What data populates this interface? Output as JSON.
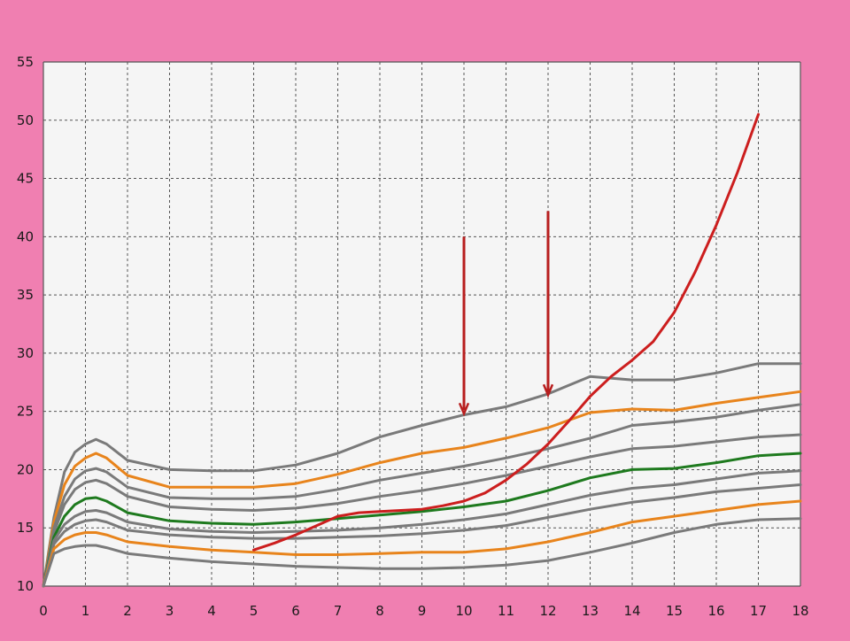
{
  "colors": {
    "background": "#f07fb1",
    "plot_area": "#f5f5f5",
    "grid": "#555555",
    "percentile_gray": "#7a7a7a",
    "percentile_orange": "#e8841c",
    "median_green": "#1e7a1e",
    "patient_red": "#cc1e1e",
    "arrow": "#b81e1e"
  },
  "chart_data": {
    "type": "line",
    "title": "",
    "xlabel": "",
    "ylabel": "",
    "xlim": [
      0,
      18
    ],
    "ylim": [
      10,
      55
    ],
    "x_ticks": [
      "0",
      "1",
      "2",
      "3",
      "4",
      "5",
      "6",
      "7",
      "8",
      "9",
      "10",
      "11",
      "12",
      "13",
      "14",
      "15",
      "16",
      "17",
      "18"
    ],
    "y_ticks": [
      "10",
      "15",
      "20",
      "25",
      "30",
      "35",
      "40",
      "45",
      "50",
      "55"
    ],
    "grid": true,
    "x": [
      0,
      0.25,
      0.5,
      0.75,
      1,
      1.25,
      1.5,
      2,
      3,
      4,
      5,
      6,
      7,
      8,
      9,
      10,
      11,
      12,
      13,
      14,
      15,
      16,
      17,
      18
    ],
    "series": [
      {
        "color": "gray",
        "values": [
          10,
          15.9,
          19.8,
          21.5,
          22.2,
          22.6,
          22.2,
          20.8,
          20.0,
          19.9,
          19.9,
          20.4,
          21.4,
          22.8,
          23.8,
          24.7,
          25.4,
          26.5,
          28.0,
          27.7,
          27.7,
          28.3,
          29.1,
          29.1
        ]
      },
      {
        "color": "orange",
        "values": [
          10,
          15.5,
          18.7,
          20.3,
          21.0,
          21.4,
          21.0,
          19.5,
          18.5,
          18.5,
          18.5,
          18.8,
          19.6,
          20.6,
          21.4,
          21.9,
          22.7,
          23.6,
          24.9,
          25.2,
          25.1,
          25.7,
          26.2,
          26.7
        ]
      },
      {
        "color": "gray",
        "values": [
          10,
          15.0,
          17.7,
          19.2,
          19.9,
          20.1,
          19.8,
          18.5,
          17.6,
          17.5,
          17.5,
          17.7,
          18.3,
          19.1,
          19.7,
          20.3,
          21.0,
          21.8,
          22.7,
          23.8,
          24.1,
          24.5,
          25.1,
          25.6
        ]
      },
      {
        "color": "gray",
        "values": [
          10,
          14.6,
          17.0,
          18.3,
          18.9,
          19.1,
          18.8,
          17.7,
          16.8,
          16.6,
          16.5,
          16.7,
          17.1,
          17.7,
          18.2,
          18.8,
          19.5,
          20.3,
          21.1,
          21.8,
          22.0,
          22.4,
          22.8,
          23.0
        ]
      },
      {
        "color": "green",
        "values": [
          10,
          14.2,
          16.0,
          17.0,
          17.5,
          17.6,
          17.3,
          16.3,
          15.6,
          15.4,
          15.3,
          15.5,
          15.8,
          16.1,
          16.4,
          16.8,
          17.3,
          18.2,
          19.3,
          20.0,
          20.1,
          20.6,
          21.2,
          21.4
        ]
      },
      {
        "color": "gray",
        "values": [
          10,
          13.9,
          15.3,
          16.0,
          16.4,
          16.5,
          16.3,
          15.5,
          14.9,
          14.7,
          14.6,
          14.7,
          14.8,
          15.0,
          15.3,
          15.7,
          16.2,
          17.0,
          17.8,
          18.4,
          18.7,
          19.2,
          19.7,
          19.9
        ]
      },
      {
        "color": "gray",
        "values": [
          10,
          13.6,
          14.7,
          15.3,
          15.6,
          15.7,
          15.5,
          14.8,
          14.4,
          14.2,
          14.1,
          14.1,
          14.2,
          14.3,
          14.5,
          14.8,
          15.2,
          15.9,
          16.6,
          17.2,
          17.6,
          18.1,
          18.4,
          18.7
        ]
      },
      {
        "color": "orange",
        "values": [
          10,
          13.2,
          14.0,
          14.4,
          14.6,
          14.6,
          14.4,
          13.8,
          13.4,
          13.1,
          12.9,
          12.7,
          12.7,
          12.8,
          12.9,
          12.9,
          13.2,
          13.8,
          14.6,
          15.5,
          16.0,
          16.5,
          17.0,
          17.3
        ]
      },
      {
        "color": "gray",
        "values": [
          10,
          12.8,
          13.2,
          13.4,
          13.5,
          13.5,
          13.3,
          12.8,
          12.4,
          12.1,
          11.9,
          11.7,
          11.6,
          11.5,
          11.5,
          11.6,
          11.8,
          12.2,
          12.9,
          13.7,
          14.6,
          15.3,
          15.7,
          15.8
        ]
      },
      {
        "color": "red",
        "patient": true,
        "x": [
          5,
          5.5,
          6,
          6.5,
          7,
          7.5,
          8,
          8.5,
          9,
          9.5,
          10,
          10.5,
          11,
          11.5,
          12,
          12.5,
          13,
          13.5,
          14,
          14.5,
          15,
          15.5,
          16,
          16.5,
          17
        ],
        "values": [
          13.1,
          13.7,
          14.4,
          15.2,
          16.0,
          16.3,
          16.4,
          16.5,
          16.6,
          16.9,
          17.3,
          18.0,
          19.1,
          20.5,
          22.2,
          24.2,
          26.3,
          28.0,
          29.4,
          31.0,
          33.5,
          37.0,
          41.0,
          45.5,
          50.5
        ]
      }
    ],
    "annotations": [
      {
        "type": "arrow",
        "x": 10,
        "y_from": 40.0,
        "y_to": 24.8
      },
      {
        "type": "arrow",
        "x": 12,
        "y_from": 42.2,
        "y_to": 26.4
      }
    ]
  }
}
